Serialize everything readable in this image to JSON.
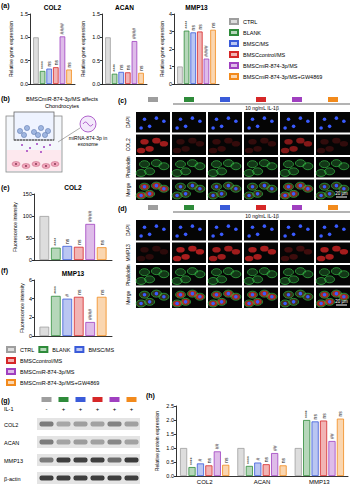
{
  "chart_data": [
    {
      "type": "bar",
      "panel": "(a)",
      "title": "COL2",
      "y_label": "Relative gene expression",
      "categories": [
        null
      ],
      "series": [
        {
          "name": "CTRL",
          "color": "#9e9e9e",
          "values": [
            1.0
          ]
        },
        {
          "name": "BLANK",
          "color": "#2e8b3a",
          "values": [
            0.28
          ],
          "annotations": [
            "****"
          ]
        },
        {
          "name": "BMSC/MS",
          "color": "#3a5bd9",
          "values": [
            0.33
          ],
          "annotations": [
            "ns"
          ]
        },
        {
          "name": "BMSCcontrol/MS",
          "color": "#d62728",
          "values": [
            0.36
          ],
          "annotations": [
            "ns"
          ]
        },
        {
          "name": "BMSCmiR-874-3p/MS",
          "color": "#a040c0",
          "values": [
            1.02
          ],
          "annotations": [
            "####"
          ]
        },
        {
          "name": "BMSCmiR-874-3p/MS+GW4869",
          "color": "#f28a1c",
          "values": [
            0.31
          ],
          "annotations": [
            "ns"
          ]
        }
      ],
      "ylim": [
        0,
        1.5
      ],
      "yticks": [
        {
          "value": 0,
          "label": "0.0"
        },
        0.5,
        {
          "value": 1,
          "label": "1.0"
        },
        1.5
      ],
      "grid": false,
      "tick_labels": "y"
    },
    {
      "type": "bar",
      "title": "ACAN",
      "y_label": "Relative gene expression",
      "categories": [
        null
      ],
      "series": [
        {
          "name": "CTRL",
          "color": "#9e9e9e",
          "values": [
            1.0
          ]
        },
        {
          "name": "BLANK",
          "color": "#2e8b3a",
          "values": [
            0.22
          ],
          "annotations": [
            "****"
          ]
        },
        {
          "name": "BMSC/MS",
          "color": "#3a5bd9",
          "values": [
            0.26
          ],
          "annotations": [
            "ns"
          ]
        },
        {
          "name": "BMSCcontrol/MS",
          "color": "#d62728",
          "values": [
            0.25
          ],
          "annotations": [
            "ns"
          ]
        },
        {
          "name": "BMSCmiR-874-3p/MS",
          "color": "#a040c0",
          "values": [
            0.92
          ],
          "annotations": [
            "####"
          ]
        },
        {
          "name": "BMSCmiR-874-3p/MS+GW4869",
          "color": "#f28a1c",
          "values": [
            0.24
          ],
          "annotations": [
            "ns"
          ]
        }
      ],
      "ylim": [
        0,
        1.5
      ],
      "yticks": [
        {
          "value": 0,
          "label": "0.0"
        },
        0.5,
        {
          "value": 1,
          "label": "1.0"
        },
        1.5
      ],
      "grid": false,
      "tick_labels": "y"
    },
    {
      "type": "bar",
      "title": "MMP13",
      "y_label": "Relative gene expression",
      "categories": [
        null
      ],
      "series": [
        {
          "name": "CTRL",
          "color": "#9e9e9e",
          "values": [
            1.0
          ]
        },
        {
          "name": "BLANK",
          "color": "#2e8b3a",
          "values": [
            3.05
          ],
          "annotations": [
            "****"
          ]
        },
        {
          "name": "BMSC/MS",
          "color": "#3a5bd9",
          "values": [
            2.95
          ],
          "annotations": [
            "ns"
          ]
        },
        {
          "name": "BMSCcontrol/MS",
          "color": "#d62728",
          "values": [
            3.0
          ],
          "annotations": [
            "ns"
          ]
        },
        {
          "name": "BMSCmiR-874-3p/MS",
          "color": "#a040c0",
          "values": [
            1.45
          ],
          "annotations": [
            "####"
          ]
        },
        {
          "name": "BMSCmiR-874-3p/MS+GW4869",
          "color": "#f28a1c",
          "values": [
            3.1
          ],
          "annotations": [
            "ns"
          ]
        }
      ],
      "ylim": [
        0,
        4
      ],
      "yticks": [
        0,
        1,
        2,
        3,
        4
      ],
      "grid": false,
      "tick_labels": "y",
      "legend": "right"
    },
    {
      "type": "bar",
      "panel": "(e)",
      "title": "COL2",
      "y_label": "Fluorescence intensity",
      "categories": [
        null
      ],
      "series": [
        {
          "name": "CTRL",
          "color": "#9e9e9e",
          "values": [
            100
          ]
        },
        {
          "name": "BLANK",
          "color": "#2e8b3a",
          "values": [
            28
          ],
          "annotations": [
            "****"
          ]
        },
        {
          "name": "BMSC/MS",
          "color": "#3a5bd9",
          "values": [
            32
          ],
          "annotations": [
            "ns"
          ]
        },
        {
          "name": "BMSCcontrol/MS",
          "color": "#d62728",
          "values": [
            30
          ],
          "annotations": [
            "ns"
          ]
        },
        {
          "name": "BMSCmiR-874-3p/MS",
          "color": "#a040c0",
          "values": [
            82
          ],
          "annotations": [
            "####"
          ]
        },
        {
          "name": "BMSCmiR-874-3p/MS+GW4869",
          "color": "#f28a1c",
          "values": [
            29
          ],
          "annotations": [
            "ns"
          ]
        }
      ],
      "ylim": [
        0,
        150
      ],
      "yticks": [
        0,
        50,
        100,
        150
      ],
      "grid": false,
      "tick_labels": "y"
    },
    {
      "type": "bar",
      "panel": "(f)",
      "title": "MMP13",
      "y_label": "Fluorescence intensity",
      "categories": [
        null
      ],
      "series": [
        {
          "name": "CTRL",
          "color": "#9e9e9e",
          "values": [
            1.0
          ]
        },
        {
          "name": "BLANK",
          "color": "#2e8b3a",
          "values": [
            4.3
          ],
          "annotations": [
            "****"
          ]
        },
        {
          "name": "BMSC/MS",
          "color": "#3a5bd9",
          "values": [
            4.0
          ],
          "annotations": [
            "#"
          ]
        },
        {
          "name": "BMSCcontrol/MS",
          "color": "#d62728",
          "values": [
            4.2
          ],
          "annotations": [
            "ns"
          ]
        },
        {
          "name": "BMSCmiR-874-3p/MS",
          "color": "#a040c0",
          "values": [
            1.5
          ],
          "annotations": [
            "####"
          ]
        },
        {
          "name": "BMSCmiR-874-3p/MS+GW4869",
          "color": "#f28a1c",
          "values": [
            4.2
          ],
          "annotations": [
            "ns"
          ]
        }
      ],
      "ylim": [
        0,
        6
      ],
      "yticks": [
        0,
        2,
        4,
        6
      ],
      "grid": false,
      "tick_labels": "y",
      "legend": "bottom"
    },
    {
      "type": "bar",
      "panel": "(h)",
      "y_label": "Relative protein expression",
      "categories": [
        "COL2",
        "ACAN",
        "MMP13"
      ],
      "series": [
        {
          "name": "CTRL",
          "color": "#9e9e9e",
          "values": [
            1.0,
            1.0,
            1.0
          ]
        },
        {
          "name": "BLANK",
          "color": "#2e8b3a",
          "values": [
            0.32,
            0.36,
            2.0
          ],
          "annotations": [
            "****",
            "****",
            "****"
          ]
        },
        {
          "name": "BMSC/MS",
          "color": "#3a5bd9",
          "values": [
            0.45,
            0.48,
            1.95
          ],
          "annotations": [
            "#",
            "#",
            "ns"
          ]
        },
        {
          "name": "BMSCcontrol/MS",
          "color": "#d62728",
          "values": [
            0.38,
            0.42,
            1.98
          ],
          "annotations": [
            "ns",
            "ns",
            "ns"
          ]
        },
        {
          "name": "BMSCmiR-874-3p/MS",
          "color": "#a040c0",
          "values": [
            0.88,
            0.82,
            1.25
          ],
          "annotations": [
            "##",
            "##",
            "##"
          ]
        },
        {
          "name": "BMSCmiR-874-3p/MS+GW4869",
          "color": "#f28a1c",
          "values": [
            0.4,
            0.38,
            2.05
          ],
          "annotations": [
            "ns",
            "ns",
            "ns"
          ]
        }
      ],
      "ylim": [
        0,
        2.5
      ],
      "yticks": [
        {
          "value": 0,
          "label": "0.0"
        },
        0.5,
        {
          "value": 1,
          "label": "1.0"
        },
        1.5,
        {
          "value": 2,
          "label": "2.0"
        },
        2.5
      ],
      "grid": false
    }
  ],
  "schematic": {
    "panel": "(b)",
    "title": "BMSCmiR-874-3p/MS affects Chondrocytes",
    "label": "miRNA-874-3p in exosome"
  },
  "micrographs": [
    {
      "panel": "(c)",
      "treatment": "10 ng/mL IL-1β",
      "rows": [
        "DAPI",
        "COL2",
        "Phalloidin",
        "Merge"
      ],
      "scale_bar": "20 μm"
    },
    {
      "panel": "(d)",
      "treatment": "10 ng/mL IL-1β",
      "rows": [
        "DAPI",
        "MMP13",
        "Phalloidin",
        "Merge"
      ],
      "scale_bar": "20 μm"
    }
  ],
  "western_blot": {
    "panel": "(g)",
    "treatment_label": "IL-1",
    "treatment": [
      "-",
      "+",
      "+",
      "+",
      "+",
      "+"
    ],
    "bands": [
      "COL2",
      "ACAN",
      "MMP13",
      "β-actin"
    ]
  }
}
